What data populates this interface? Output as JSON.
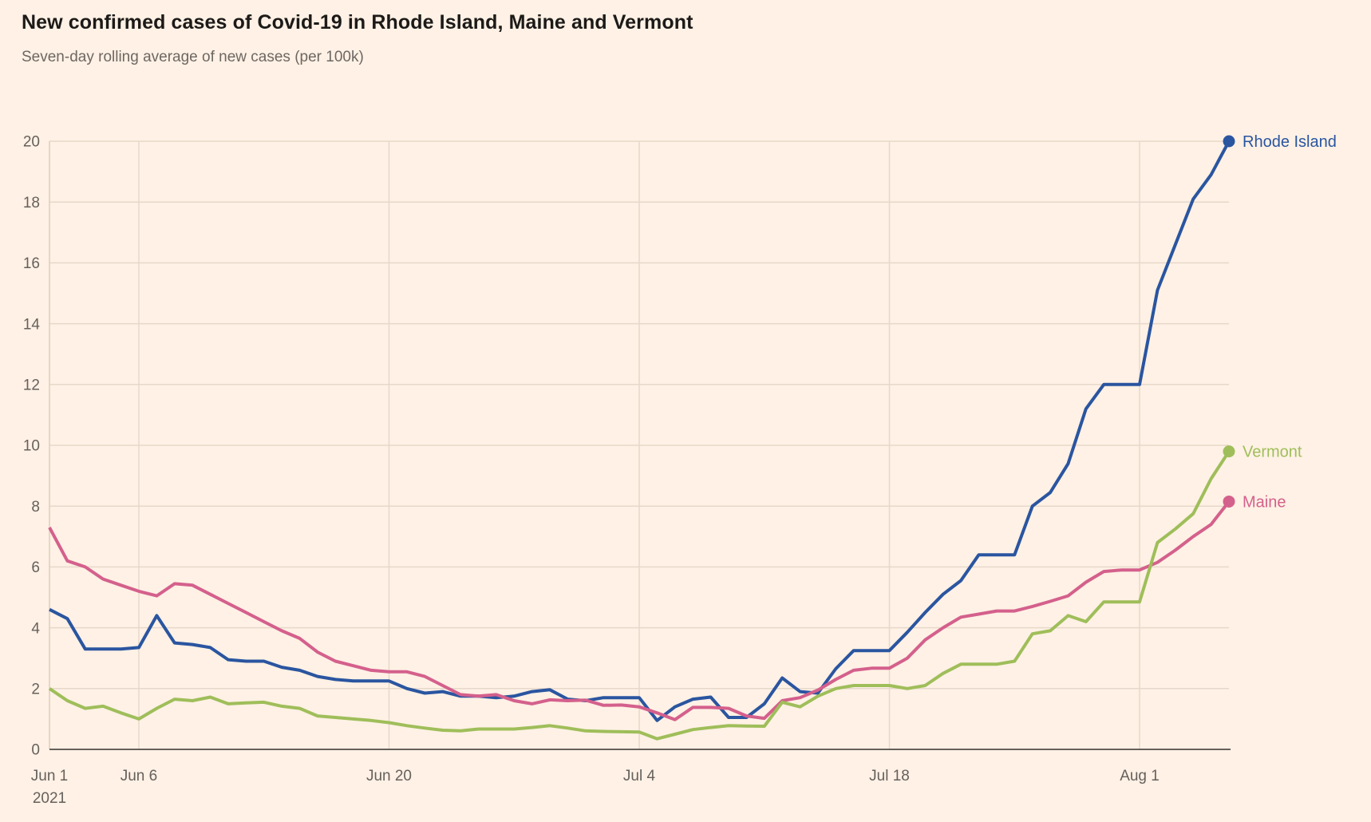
{
  "header": {
    "title": "New confirmed cases of Covid-19 in Rhode Island, Maine and Vermont",
    "subtitle": "Seven-day rolling average of new cases (per 100k)"
  },
  "colors": {
    "background": "#FFF1E5",
    "grid": "#E6D9CA",
    "left_axis": "#DCCFC0",
    "axis": "#66605C",
    "tick_text": "#66605C",
    "title_text": "#1C1A18",
    "subtitle_text": "#6E6762"
  },
  "chart_data": {
    "type": "line",
    "title": "New confirmed cases of Covid-19 in Rhode Island, Maine and Vermont",
    "subtitle": "Seven-day rolling average of new cases (per 100k)",
    "x_unit": "days since Jun 1, 2021",
    "x_days_total": 66,
    "x_ticks": [
      {
        "day": 0,
        "label": "Jun 1",
        "sublabel": "2021"
      },
      {
        "day": 5,
        "label": "Jun 6"
      },
      {
        "day": 19,
        "label": "Jun 20"
      },
      {
        "day": 33,
        "label": "Jul 4"
      },
      {
        "day": 47,
        "label": "Jul 18"
      },
      {
        "day": 61,
        "label": "Aug 1"
      }
    ],
    "y_ticks": [
      0,
      2,
      4,
      6,
      8,
      10,
      12,
      14,
      16,
      18,
      20
    ],
    "ylim": [
      0,
      20
    ],
    "grid": true,
    "legend_position": "line-end-labels",
    "series": [
      {
        "name": "Rhode Island",
        "color": "#2A55A0",
        "values": [
          4.6,
          4.3,
          3.3,
          3.3,
          3.3,
          3.35,
          4.4,
          3.5,
          3.45,
          3.35,
          2.95,
          2.9,
          2.9,
          2.7,
          2.6,
          2.4,
          2.3,
          2.25,
          2.25,
          2.25,
          2.0,
          1.85,
          1.9,
          1.75,
          1.75,
          1.7,
          1.75,
          1.9,
          1.96,
          1.65,
          1.6,
          1.7,
          1.7,
          1.7,
          0.95,
          1.4,
          1.65,
          1.72,
          1.05,
          1.05,
          1.5,
          2.35,
          1.9,
          1.85,
          2.65,
          3.25,
          3.25,
          3.25,
          3.85,
          4.5,
          5.1,
          5.55,
          6.4,
          6.4,
          6.4,
          8.0,
          8.45,
          9.4,
          11.2,
          12.0,
          12.0,
          12.0,
          15.1,
          16.6,
          18.1,
          18.9,
          20.0
        ]
      },
      {
        "name": "Maine",
        "color": "#D4608C",
        "values": [
          7.3,
          6.2,
          6.0,
          5.6,
          5.4,
          5.2,
          5.05,
          5.45,
          5.4,
          5.1,
          4.8,
          4.5,
          4.2,
          3.9,
          3.65,
          3.2,
          2.9,
          2.75,
          2.6,
          2.55,
          2.55,
          2.4,
          2.1,
          1.8,
          1.75,
          1.8,
          1.6,
          1.5,
          1.63,
          1.6,
          1.62,
          1.45,
          1.46,
          1.4,
          1.2,
          0.98,
          1.38,
          1.38,
          1.35,
          1.1,
          1.02,
          1.6,
          1.7,
          1.95,
          2.3,
          2.6,
          2.67,
          2.67,
          3.0,
          3.6,
          4.0,
          4.35,
          4.45,
          4.55,
          4.55,
          4.7,
          4.87,
          5.05,
          5.5,
          5.85,
          5.9,
          5.9,
          6.15,
          6.55,
          7.0,
          7.4,
          8.15
        ]
      },
      {
        "name": "Vermont",
        "color": "#9FBE5A",
        "values": [
          2.0,
          1.6,
          1.35,
          1.42,
          1.2,
          1.0,
          1.35,
          1.65,
          1.6,
          1.72,
          1.5,
          1.53,
          1.55,
          1.42,
          1.35,
          1.1,
          1.05,
          1.0,
          0.95,
          0.88,
          0.78,
          0.7,
          0.63,
          0.61,
          0.67,
          0.67,
          0.67,
          0.72,
          0.78,
          0.7,
          0.61,
          0.59,
          0.58,
          0.57,
          0.35,
          0.5,
          0.65,
          0.72,
          0.78,
          0.77,
          0.76,
          1.55,
          1.4,
          1.75,
          2.0,
          2.1,
          2.1,
          2.1,
          2.0,
          2.1,
          2.5,
          2.8,
          2.8,
          2.8,
          2.9,
          3.8,
          3.9,
          4.4,
          4.2,
          4.85,
          4.85,
          4.85,
          6.8,
          7.25,
          7.75,
          8.9,
          9.8
        ]
      }
    ]
  }
}
